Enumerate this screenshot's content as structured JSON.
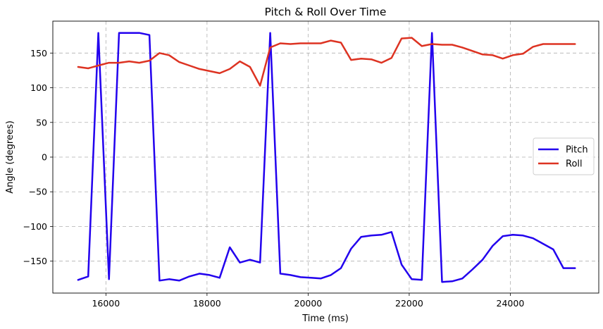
{
  "chart_data": {
    "type": "line",
    "title": "Pitch & Roll Over Time",
    "xlabel": "Time (ms)",
    "ylabel": "Angle (degrees)",
    "xlim": [
      14950,
      25750
    ],
    "ylim": [
      -196,
      196
    ],
    "xticks": [
      16000,
      18000,
      20000,
      22000,
      24000
    ],
    "yticks": [
      -150,
      -100,
      -50,
      0,
      50,
      100,
      150
    ],
    "xtick_labels": [
      "16000",
      "18000",
      "20000",
      "22000",
      "24000"
    ],
    "ytick_labels": [
      "−150",
      "−100",
      "−50",
      "0",
      "50",
      "100",
      "150"
    ],
    "grid": true,
    "legend_position": "center-right",
    "x": [
      15450,
      15650,
      15850,
      16060,
      16260,
      16460,
      16660,
      16860,
      17060,
      17250,
      17450,
      17650,
      17850,
      18050,
      18250,
      18450,
      18650,
      18850,
      19050,
      19250,
      19450,
      19650,
      19850,
      20050,
      20250,
      20450,
      20650,
      20850,
      21050,
      21250,
      21450,
      21650,
      21850,
      22050,
      22250,
      22450,
      22650,
      22850,
      23050,
      23250,
      23450,
      23650,
      23850,
      24050,
      24250,
      24450,
      24650,
      24850,
      25050,
      25280
    ],
    "series": [
      {
        "name": "Pitch",
        "color": "#2200ee",
        "values": [
          -177,
          -172,
          179,
          -176,
          179,
          179,
          179,
          176,
          -178,
          -176,
          -178,
          -172,
          -168,
          -170,
          -174,
          -130,
          -152,
          -148,
          -152,
          179,
          -168,
          -170,
          -173,
          -174,
          -175,
          -170,
          -160,
          -132,
          -115,
          -113,
          -112,
          -108,
          -155,
          -176,
          -177,
          179,
          -180,
          -179,
          -175,
          -162,
          -148,
          -128,
          -114,
          -112,
          -113,
          -117,
          -125,
          -133,
          -160,
          -160
        ]
      },
      {
        "name": "Roll",
        "color": "#dd3322",
        "values": [
          130,
          128,
          132,
          136,
          136,
          138,
          136,
          139,
          150,
          147,
          137,
          132,
          127,
          124,
          121,
          127,
          138,
          130,
          103,
          158,
          164,
          163,
          164,
          164,
          164,
          168,
          165,
          140,
          142,
          141,
          136,
          143,
          171,
          172,
          160,
          163,
          162,
          162,
          158,
          153,
          148,
          147,
          142,
          147,
          149,
          159,
          163,
          163,
          163,
          163
        ]
      }
    ]
  }
}
